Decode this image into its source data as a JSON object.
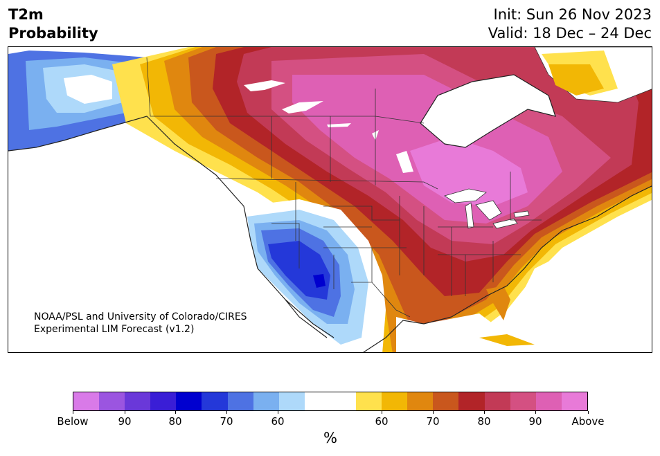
{
  "header": {
    "title_line1": "T2m",
    "title_line2": "Probability",
    "init_text": "Init: Sun 26 Nov 2023",
    "valid_text": "Valid: 18 Dec – 24 Dec"
  },
  "credit": {
    "line1": "NOAA/PSL and University of Colorado/CIRES",
    "line2": "Experimental LIM Forecast (v1.2)"
  },
  "colorbar": {
    "unit_label": "%",
    "colors": [
      "#d97ae8",
      "#9b55e0",
      "#6a38d9",
      "#3a1ed6",
      "#0000cf",
      "#2438d9",
      "#4e72e3",
      "#7ab0f0",
      "#aed9fa",
      "#ffffff",
      "#ffffff",
      "#ffe14d",
      "#f2b705",
      "#e0870f",
      "#c9571d",
      "#b22428",
      "#c23a56",
      "#d45082",
      "#de60b4",
      "#e87ad8"
    ],
    "tick_labels": [
      "Below",
      "90",
      "80",
      "70",
      "60",
      "60",
      "70",
      "80",
      "90",
      "Above"
    ]
  },
  "map": {
    "region": "North America",
    "colors": {
      "ocean": "#ffffff",
      "below_light": "#aed9fa",
      "below_mid": "#7ab0f0",
      "below_strong": "#4e72e3",
      "below_deep": "#2438d9",
      "above_yellow": "#ffe14d",
      "above_gold": "#f2b705",
      "above_orange": "#e0870f",
      "above_rust": "#c9571d",
      "above_red": "#b22428",
      "above_crimson": "#c23a56",
      "above_rose": "#d45082",
      "above_pink": "#de60b4",
      "above_magenta": "#e87ad8"
    }
  }
}
